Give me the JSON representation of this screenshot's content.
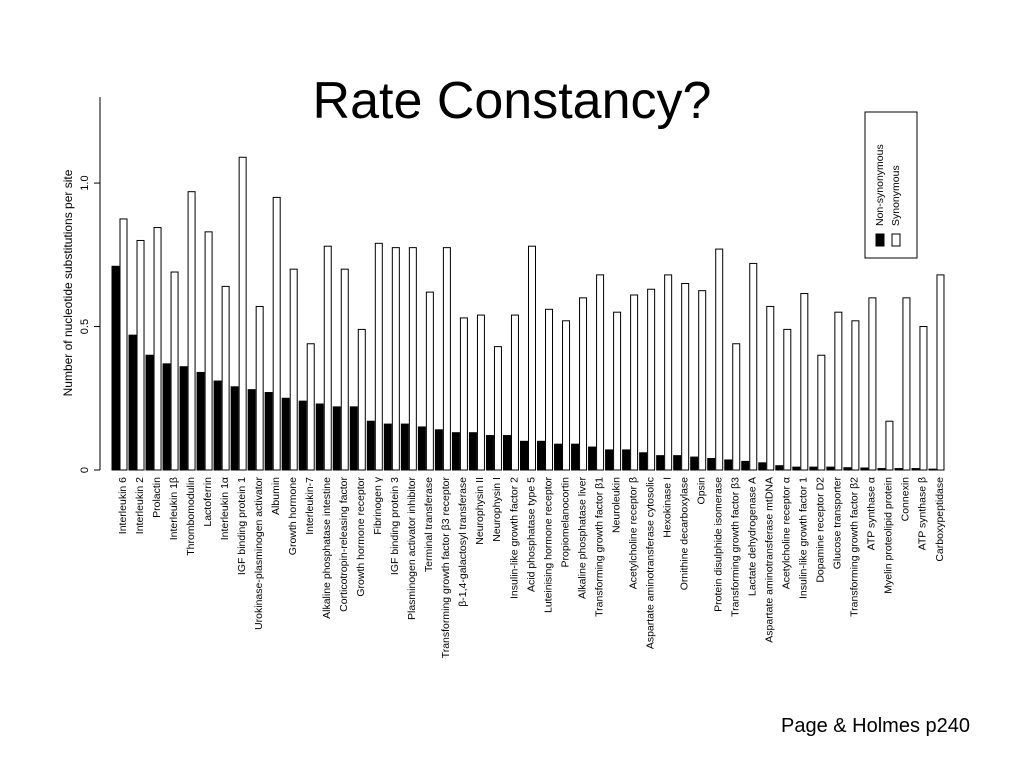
{
  "title": "Rate Constancy?",
  "caption": "Page & Holmes p240",
  "chart_data": {
    "type": "bar",
    "ylabel": "Number of nucleotide substitutions per site",
    "ylim": [
      0,
      1.3
    ],
    "yticks": [
      0,
      0.5,
      {
        "value": 1,
        "label": "1.0"
      }
    ],
    "legend": "top-right",
    "categories": [
      "Interleukin 6",
      "Interleukin 2",
      "Prolactin",
      "Interleukin 1β",
      "Thrombomodulin",
      "Lactoferrin",
      "Interleukin 1α",
      "IGF binding protein 1",
      "Urokinase-plasminogen activator",
      "Albumin",
      "Growth hormone",
      "Interleukin-7",
      "Alkaline phosphatase intestine",
      "Corticotropin-releasing factor",
      "Growth hormone receptor",
      "Fibrinogen γ",
      "IGF binding protein 3",
      "Plasminogen activator inhibitor",
      "Terminal transferase",
      "Transforming growth factor β3 receptor",
      "β-1,4-galactosyl transferase",
      "Neurophysin II",
      "Neurophysin I",
      "Insulin-like growth factor 2",
      "Acid phosphatase type 5",
      "Luteinising hormone receptor",
      "Propiomelanocortin",
      "Alkaline phosphatase liver",
      "Transforming growth factor β1",
      "Neuroleukin",
      "Acetylcholine receptor β",
      "Aspartate aminotransferase cytosolic",
      "Hexokinase I",
      "Ornithine decarboxylase",
      "Opsin",
      "Protein disulphide isomerase",
      "Transforming growth factor β3",
      "Lactate dehydrogenase A",
      "Aspartate aminotransferase mtDNA",
      "Acetylcholine receptor α",
      "Insulin-like growth factor 1",
      "Dopamine receptor D2",
      "Glucose transporter",
      "Transforming growth factor β2",
      "ATP synthase α",
      "Myelin proteolipid protein",
      "Connexin",
      "ATP synthase β",
      "Carboxypeptidase"
    ],
    "series": [
      {
        "name": "Non-synonymous",
        "color": "#000000",
        "values": [
          0.71,
          0.47,
          0.4,
          0.37,
          0.36,
          0.34,
          0.31,
          0.29,
          0.28,
          0.27,
          0.25,
          0.24,
          0.23,
          0.22,
          0.22,
          0.17,
          0.16,
          0.16,
          0.15,
          0.14,
          0.13,
          0.13,
          0.12,
          0.12,
          0.1,
          0.1,
          0.09,
          0.09,
          0.08,
          0.07,
          0.07,
          0.06,
          0.05,
          0.05,
          0.045,
          0.04,
          0.035,
          0.03,
          0.025,
          0.015,
          0.01,
          0.01,
          0.01,
          0.008,
          0.007,
          0.005,
          0.005,
          0.005,
          0.003
        ]
      },
      {
        "name": "Synonymous",
        "color": "#ffffff",
        "values": [
          0.875,
          0.8,
          0.845,
          0.69,
          0.97,
          0.83,
          0.64,
          1.09,
          0.57,
          0.95,
          0.7,
          0.44,
          0.78,
          0.7,
          0.49,
          0.79,
          0.775,
          0.775,
          0.62,
          0.775,
          0.53,
          0.54,
          0.43,
          0.54,
          0.78,
          0.56,
          0.52,
          0.6,
          0.68,
          0.55,
          0.61,
          0.63,
          0.68,
          0.65,
          0.625,
          0.77,
          0.44,
          0.72,
          0.57,
          0.49,
          0.615,
          0.4,
          0.55,
          0.52,
          0.6,
          0.17,
          0.6,
          0.5,
          0.68
        ]
      }
    ]
  }
}
